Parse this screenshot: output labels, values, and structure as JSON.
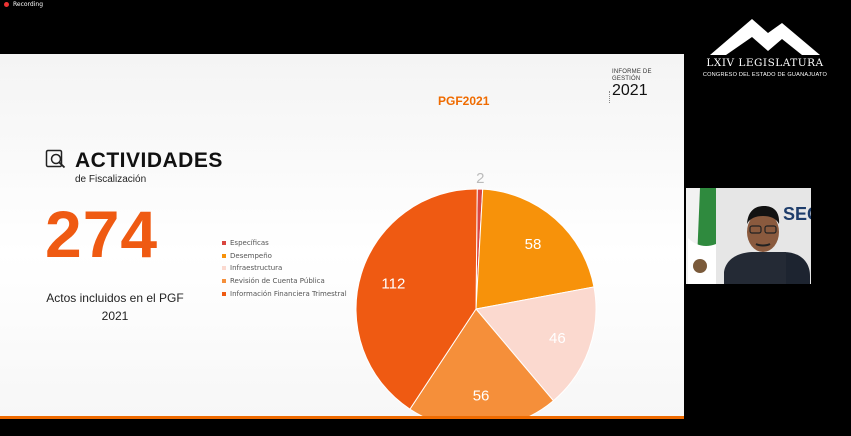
{
  "recording": {
    "label": "Recording"
  },
  "slide": {
    "badge": {
      "line1": "INFORME DE",
      "line2": "GESTIÓN",
      "year": "2021"
    },
    "section_title": "ACTIVIDADES",
    "section_subtitle": "de Fiscalización",
    "total": "274",
    "caption_line1": "Actos incluidos en el PGF",
    "caption_line2": "2021"
  },
  "logo": {
    "title": "LXIV LEGISLATURA",
    "subtitle": "CONGRESO DEL ESTADO DE GUANAJUATO"
  },
  "colors": {
    "accent": "#ef6b00",
    "number": "#ef5a12"
  },
  "chart_data": {
    "type": "pie",
    "title": "PGF2021",
    "categories": [
      "Específicas",
      "Desempeño",
      "Infraestructura",
      "Revisión de Cuenta Pública",
      "Información Financiera Trimestral"
    ],
    "values": [
      2,
      58,
      46,
      56,
      112
    ],
    "colors": [
      "#d9463f",
      "#f7920a",
      "#fbd9cf",
      "#f58f3a",
      "#ef5a12"
    ],
    "label_colors": [
      "#bbbbbb",
      "#ffffff",
      "#ffffff",
      "#ffffff",
      "#ffffff"
    ],
    "legend": "left"
  },
  "camera": {
    "backdrop_text": "SEG"
  }
}
